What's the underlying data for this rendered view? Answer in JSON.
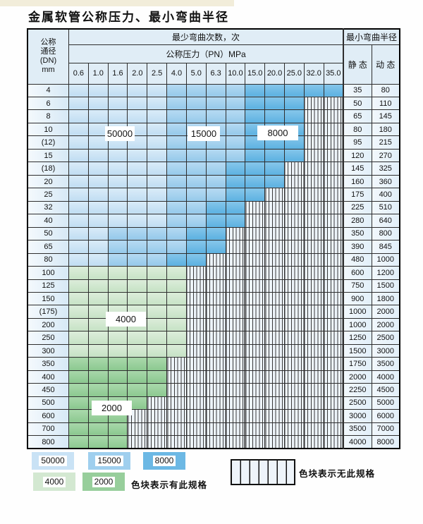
{
  "page": {
    "title": "金属软管公称压力、最小弯曲半径"
  },
  "table": {
    "dn_header_lines": [
      "公称",
      "通径",
      "(DN)",
      "mm"
    ],
    "bend_cycles_header": "最少弯曲次数，次",
    "pressure_header": "公称压力（PN）MPa",
    "radius_header": "最小弯曲半径",
    "static_header": "静 态",
    "dynamic_header": "动 态",
    "pressure_columns": [
      "0.6",
      "1.0",
      "1.6",
      "2.0",
      "2.5",
      "4.0",
      "5.0",
      "6.3",
      "10.0",
      "15.0",
      "20.0",
      "25.0",
      "32.0",
      "35.0"
    ],
    "cell_code_legend": "L=50000 M=15000 D=8000 F=4000 T=2000 H=no-spec-hatch",
    "rows": [
      {
        "dn": "4",
        "cells": "LLLLLMMMMDDDDD",
        "static": "35",
        "dynamic": "80"
      },
      {
        "dn": "6",
        "cells": "LLLLLMMMMDDDHH",
        "static": "50",
        "dynamic": "110"
      },
      {
        "dn": "8",
        "cells": "LLLLLMMMMDDDHH",
        "static": "65",
        "dynamic": "145"
      },
      {
        "dn": "10",
        "cells": "LLLLLMMMMDDDHH",
        "static": "80",
        "dynamic": "180"
      },
      {
        "dn": "(12)",
        "cells": "LLLLLMMMMDDDHH",
        "static": "95",
        "dynamic": "215"
      },
      {
        "dn": "15",
        "cells": "LLLLLMMMMDDDHH",
        "static": "120",
        "dynamic": "270"
      },
      {
        "dn": "(18)",
        "cells": "LLLLLMMMDDDHHH",
        "static": "145",
        "dynamic": "325"
      },
      {
        "dn": "20",
        "cells": "LLLLLMMMDDDHHH",
        "static": "160",
        "dynamic": "360"
      },
      {
        "dn": "25",
        "cells": "LLLLLMMMDDHHHH",
        "static": "175",
        "dynamic": "400"
      },
      {
        "dn": "32",
        "cells": "LLLLLMMDDHHHHH",
        "static": "225",
        "dynamic": "510"
      },
      {
        "dn": "40",
        "cells": "LLLLLMMDDHHHHH",
        "static": "280",
        "dynamic": "640"
      },
      {
        "dn": "50",
        "cells": "LLMMMMDDHHHHHH",
        "static": "350",
        "dynamic": "800"
      },
      {
        "dn": "65",
        "cells": "LLMMMMDDHHHHHH",
        "static": "390",
        "dynamic": "845"
      },
      {
        "dn": "80",
        "cells": "LLMMMDDHHHHHHH",
        "static": "480",
        "dynamic": "1000"
      },
      {
        "dn": "100",
        "cells": "FFFFFFHHHHHHHH",
        "static": "600",
        "dynamic": "1200"
      },
      {
        "dn": "125",
        "cells": "FFFFFFHHHHHHHH",
        "static": "750",
        "dynamic": "1500"
      },
      {
        "dn": "150",
        "cells": "FFFFFFHHHHHHHH",
        "static": "900",
        "dynamic": "1800"
      },
      {
        "dn": "(175)",
        "cells": "FFFFFFHHHHHHHH",
        "static": "1000",
        "dynamic": "2000"
      },
      {
        "dn": "200",
        "cells": "FFFFFFHHHHHHHH",
        "static": "1000",
        "dynamic": "2000"
      },
      {
        "dn": "250",
        "cells": "FFFFFFHHHHHHHH",
        "static": "1250",
        "dynamic": "2500"
      },
      {
        "dn": "300",
        "cells": "FFFFFFHHHHHHHH",
        "static": "1500",
        "dynamic": "3000"
      },
      {
        "dn": "350",
        "cells": "TTTTTHHHHHHHHH",
        "static": "1750",
        "dynamic": "3500"
      },
      {
        "dn": "400",
        "cells": "TTTTTHHHHHHHHH",
        "static": "2000",
        "dynamic": "4000"
      },
      {
        "dn": "450",
        "cells": "TTTTTHHHHHHHHH",
        "static": "2250",
        "dynamic": "4500"
      },
      {
        "dn": "500",
        "cells": "TTTTHHHHHHHHHH",
        "static": "2500",
        "dynamic": "5000"
      },
      {
        "dn": "600",
        "cells": "TTTHHHHHHHHHHH",
        "static": "3000",
        "dynamic": "6000"
      },
      {
        "dn": "700",
        "cells": "TTTHHHHHHHHHHH",
        "static": "3500",
        "dynamic": "7000"
      },
      {
        "dn": "800",
        "cells": "TTTHHHHHHHHHHH",
        "static": "4000",
        "dynamic": "8000"
      }
    ]
  },
  "overlays": {
    "v50000": "50000",
    "v15000": "15000",
    "v8000": "8000",
    "v4000": "4000",
    "v2000": "2000"
  },
  "legend": {
    "items": [
      {
        "label": "50000",
        "color": "#c9e2f5"
      },
      {
        "label": "15000",
        "color": "#9fcfee"
      },
      {
        "label": "8000",
        "color": "#6cb8e4"
      },
      {
        "label": "4000",
        "color": "#d3e8d1"
      },
      {
        "label": "2000",
        "color": "#97ce9b"
      }
    ],
    "has_spec_text": "色块表示有此规格",
    "no_spec_text": "色块表示无此规格"
  },
  "colors": {
    "c50000": "#cde4f6",
    "c15000": "#a5d1ee",
    "c8000": "#6fbae5",
    "c4000": "#d1e7cf",
    "c2000": "#9ad09d",
    "hatch_bg": "#edf4fa",
    "header_bg": "#e0edf6"
  }
}
